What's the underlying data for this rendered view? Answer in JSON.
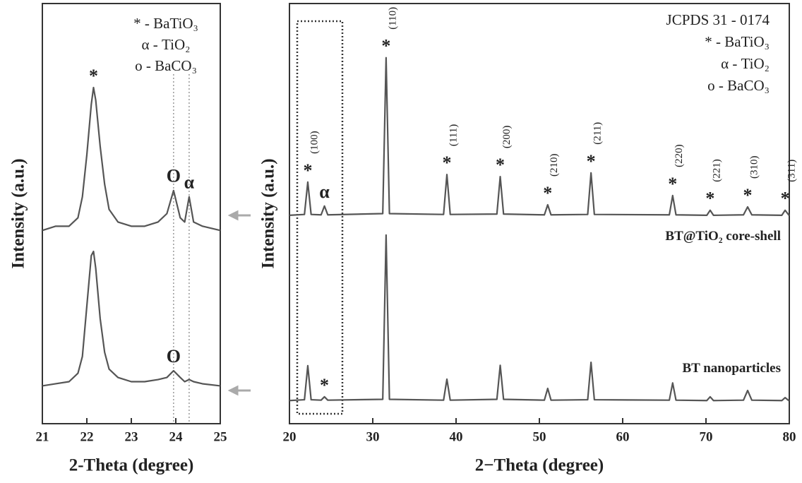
{
  "chart_data": [
    {
      "type": "line",
      "xlabel": "2-Theta (degree)",
      "ylabel": "Intensity (a.u.)",
      "xlim": [
        21,
        25
      ],
      "xticks": [
        21,
        22,
        23,
        24,
        25
      ],
      "ylim": [
        0,
        100
      ],
      "notes": [
        "* - BaTiO₃",
        "α - TiO₂",
        "o - BaCO₃"
      ],
      "ref_lines": [
        23.95,
        24.3
      ],
      "x": [
        21.0,
        21.3,
        21.6,
        21.8,
        21.9,
        22.0,
        22.1,
        22.15,
        22.2,
        22.3,
        22.4,
        22.5,
        22.7,
        23.0,
        23.3,
        23.6,
        23.8,
        23.95,
        24.1,
        24.2,
        24.3,
        24.4,
        24.6,
        25.0
      ],
      "series": [
        {
          "color": "#555555",
          "values": [
            46,
            47,
            47,
            49,
            54,
            64,
            76,
            80,
            77,
            66,
            57,
            51,
            48,
            47,
            47,
            48,
            50,
            55.5,
            49,
            48,
            54,
            48,
            47,
            46
          ],
          "annotations": [
            {
              "x": 22.15,
              "text": "*"
            },
            {
              "x": 23.95,
              "text": "O"
            },
            {
              "x": 24.3,
              "text": "α"
            }
          ]
        },
        {
          "color": "#555555",
          "values": [
            9,
            9.5,
            10,
            12,
            16,
            28,
            40,
            41,
            37,
            25,
            17,
            13,
            11,
            10,
            10,
            10.5,
            11,
            12.6,
            11,
            10,
            10.5,
            10,
            9.5,
            9
          ],
          "annotations": [
            {
              "x": 23.95,
              "text": "O"
            }
          ]
        }
      ]
    },
    {
      "type": "line",
      "xlabel": "2−Theta (degree)",
      "ylabel": "Intensity (a.u.)",
      "xlim": [
        20,
        80
      ],
      "xticks": [
        20,
        30,
        40,
        50,
        60,
        70,
        80
      ],
      "ylim": [
        0,
        100
      ],
      "notes": [
        "JCPDS 31 - 0174",
        "* - BaTiO₃",
        "α - TiO₂",
        "o - BaCO₃"
      ],
      "x": [
        20,
        21.8,
        22.2,
        22.6,
        23.8,
        24.2,
        24.6,
        31.2,
        31.6,
        32.0,
        38.5,
        38.9,
        39.3,
        44.9,
        45.3,
        45.7,
        50.6,
        51.0,
        51.4,
        55.8,
        56.2,
        56.6,
        65.6,
        66.0,
        66.4,
        70.1,
        70.5,
        70.9,
        74.5,
        75.0,
        75.5,
        79.1,
        79.5,
        80
      ],
      "series": [
        {
          "name": "BT@TiO₂ core-shell",
          "color": "#555555",
          "values": [
            49.6,
            49.8,
            57.5,
            49.8,
            49.7,
            51.8,
            49.7,
            50,
            87.1,
            50,
            49.8,
            59.3,
            49.8,
            49.9,
            58.8,
            49.9,
            49.7,
            52.1,
            49.7,
            49.8,
            59.7,
            49.8,
            49.7,
            54.3,
            49.7,
            49.6,
            50.8,
            49.6,
            49.7,
            51.6,
            49.7,
            49.6,
            50.8,
            49.5
          ],
          "annotations": [
            {
              "x": 22.2,
              "text": "*",
              "label": "(100)"
            },
            {
              "x": 24.2,
              "text": "α"
            },
            {
              "x": 31.6,
              "text": "*",
              "label": "(110)"
            },
            {
              "x": 38.9,
              "text": "*",
              "label": "(111)"
            },
            {
              "x": 45.3,
              "text": "*",
              "label": "(200)"
            },
            {
              "x": 51.0,
              "text": "*",
              "label": "(210)"
            },
            {
              "x": 56.2,
              "text": "*",
              "label": "(211)"
            },
            {
              "x": 66.0,
              "text": "*",
              "label": "(220)"
            },
            {
              "x": 70.5,
              "text": "*",
              "label": "(221)"
            },
            {
              "x": 75.0,
              "text": "*",
              "label": "(310)"
            },
            {
              "x": 79.5,
              "text": "*",
              "label": "(311)"
            }
          ]
        },
        {
          "name": "BT nanoparticles",
          "color": "#555555",
          "values": [
            5.5,
            5.7,
            13.8,
            5.7,
            5.6,
            6.4,
            5.6,
            5.8,
            44.9,
            5.8,
            5.6,
            10.6,
            5.6,
            5.8,
            13.9,
            5.8,
            5.6,
            8.4,
            5.6,
            5.7,
            14.6,
            5.7,
            5.6,
            9.7,
            5.6,
            5.5,
            6.4,
            5.5,
            5.6,
            7.9,
            5.6,
            5.5,
            6.2,
            5.4
          ],
          "annotations": [
            {
              "x": 24.2,
              "text": "*"
            }
          ]
        }
      ]
    }
  ]
}
